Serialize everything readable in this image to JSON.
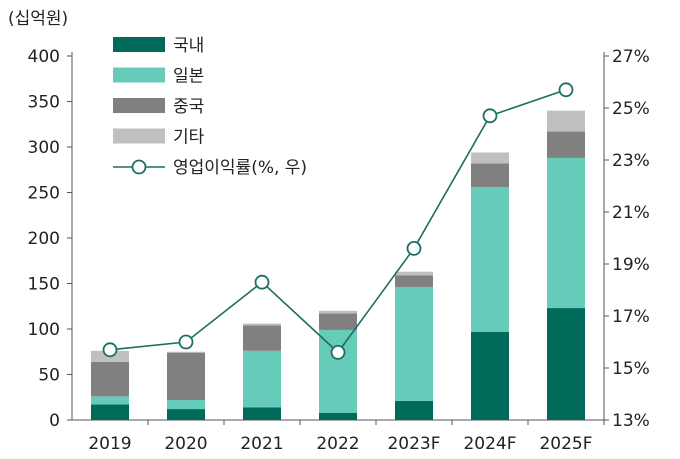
{
  "chart_data": {
    "type": "bar",
    "stacked": true,
    "unit_label": "(십억원)",
    "categories": [
      "2019",
      "2020",
      "2021",
      "2022",
      "2023F",
      "2024F",
      "2025F"
    ],
    "series": [
      {
        "name": "국내",
        "color": "#006a5b",
        "values": [
          17,
          12,
          14,
          8,
          21,
          97,
          123
        ]
      },
      {
        "name": "일본",
        "color": "#66cbb8",
        "values": [
          9,
          10,
          62,
          91,
          125,
          159,
          165
        ]
      },
      {
        "name": "중국",
        "color": "#808080",
        "values": [
          38,
          52,
          28,
          18,
          13,
          26,
          29
        ]
      },
      {
        "name": "기타",
        "color": "#c0c0c0",
        "values": [
          12,
          1,
          2,
          3,
          4,
          12,
          23
        ]
      }
    ],
    "line": {
      "name": "영업이익률(%, 우)",
      "color": "#1d6e62",
      "values": [
        15.7,
        16.0,
        18.3,
        15.6,
        19.6,
        24.7,
        25.7
      ]
    },
    "ylim": [
      0,
      400
    ],
    "yticks": [
      "0",
      "50",
      "100",
      "150",
      "200",
      "250",
      "300",
      "350",
      "400"
    ],
    "y2lim": [
      13,
      27
    ],
    "y2ticks": [
      "13%",
      "15%",
      "17%",
      "19%",
      "21%",
      "23%",
      "25%",
      "27%"
    ],
    "legend_position": "top-left"
  }
}
